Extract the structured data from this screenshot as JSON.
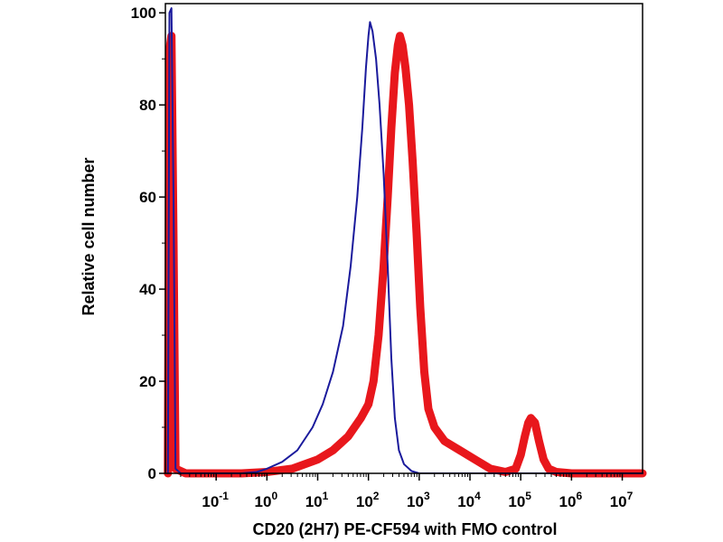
{
  "chart_data": {
    "type": "line",
    "xlabel": "CD20 (2H7) PE-CF594 with FMO control",
    "ylabel": "Relative cell number",
    "xscale": "log",
    "xlim": [
      -2,
      7.4
    ],
    "ylim": [
      0,
      102
    ],
    "x_ticks": [
      {
        "base": "10",
        "exp": "-1",
        "value": -1
      },
      {
        "base": "10",
        "exp": "0",
        "value": 0
      },
      {
        "base": "10",
        "exp": "1",
        "value": 1
      },
      {
        "base": "10",
        "exp": "2",
        "value": 2
      },
      {
        "base": "10",
        "exp": "3",
        "value": 3
      },
      {
        "base": "10",
        "exp": "4",
        "value": 4
      },
      {
        "base": "10",
        "exp": "5",
        "value": 5
      },
      {
        "base": "10",
        "exp": "6",
        "value": 6
      },
      {
        "base": "10",
        "exp": "7",
        "value": 7
      }
    ],
    "y_ticks": [
      "0",
      "20",
      "40",
      "60",
      "80",
      "100"
    ],
    "series": [
      {
        "color": "#1a1a9c",
        "points": [
          [
            -1.95,
            0
          ],
          [
            -1.92,
            100
          ],
          [
            -1.88,
            101
          ],
          [
            -1.84,
            60
          ],
          [
            -1.8,
            1
          ],
          [
            -1.7,
            0
          ],
          [
            -0.5,
            0
          ],
          [
            -0.2,
            0.3
          ],
          [
            0,
            1
          ],
          [
            0.3,
            2.5
          ],
          [
            0.6,
            5
          ],
          [
            0.9,
            10
          ],
          [
            1.1,
            15
          ],
          [
            1.3,
            22
          ],
          [
            1.5,
            32
          ],
          [
            1.65,
            45
          ],
          [
            1.78,
            60
          ],
          [
            1.88,
            75
          ],
          [
            1.95,
            88
          ],
          [
            2.0,
            95
          ],
          [
            2.03,
            98
          ],
          [
            2.08,
            96
          ],
          [
            2.15,
            90
          ],
          [
            2.22,
            80
          ],
          [
            2.3,
            65
          ],
          [
            2.38,
            45
          ],
          [
            2.45,
            25
          ],
          [
            2.52,
            12
          ],
          [
            2.6,
            5
          ],
          [
            2.7,
            2
          ],
          [
            2.85,
            0.5
          ],
          [
            3.0,
            0
          ],
          [
            7.4,
            0
          ]
        ]
      },
      {
        "color": "#e8171c",
        "points": [
          [
            -1.95,
            0
          ],
          [
            -1.92,
            92
          ],
          [
            -1.88,
            95
          ],
          [
            -1.84,
            50
          ],
          [
            -1.8,
            1
          ],
          [
            -1.6,
            0
          ],
          [
            -0.5,
            0
          ],
          [
            0,
            0.3
          ],
          [
            0.5,
            1
          ],
          [
            1.0,
            3
          ],
          [
            1.3,
            5
          ],
          [
            1.6,
            8
          ],
          [
            1.85,
            12
          ],
          [
            2.0,
            15
          ],
          [
            2.1,
            20
          ],
          [
            2.2,
            30
          ],
          [
            2.3,
            45
          ],
          [
            2.38,
            60
          ],
          [
            2.45,
            75
          ],
          [
            2.52,
            87
          ],
          [
            2.58,
            93
          ],
          [
            2.62,
            95
          ],
          [
            2.67,
            93
          ],
          [
            2.73,
            88
          ],
          [
            2.8,
            80
          ],
          [
            2.87,
            68
          ],
          [
            2.95,
            52
          ],
          [
            3.02,
            36
          ],
          [
            3.1,
            22
          ],
          [
            3.18,
            14
          ],
          [
            3.3,
            10
          ],
          [
            3.5,
            7
          ],
          [
            3.8,
            5
          ],
          [
            4.1,
            3
          ],
          [
            4.4,
            1
          ],
          [
            4.7,
            0.3
          ],
          [
            4.9,
            1
          ],
          [
            5.0,
            4
          ],
          [
            5.08,
            8
          ],
          [
            5.15,
            11
          ],
          [
            5.2,
            12
          ],
          [
            5.28,
            11
          ],
          [
            5.36,
            7
          ],
          [
            5.45,
            3
          ],
          [
            5.55,
            1
          ],
          [
            5.7,
            0.3
          ],
          [
            6.0,
            0
          ],
          [
            7.4,
            0
          ]
        ]
      }
    ]
  }
}
